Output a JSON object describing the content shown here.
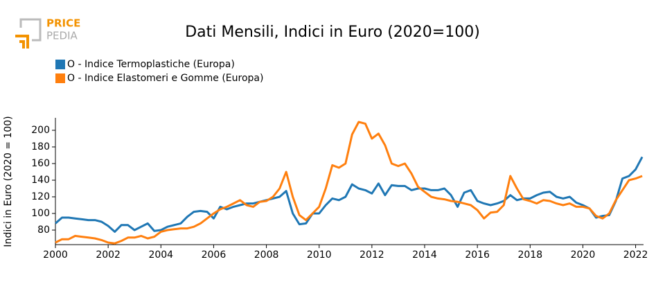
{
  "logo": {
    "line1": "PRICE",
    "line2": "PEDIA"
  },
  "chart_data": {
    "type": "line",
    "title": "Dati Mensili, Indici in Euro (2020=100)",
    "y_label": "Indici in Euro (2020 = 100)",
    "x": [
      2000,
      2000.25,
      2000.5,
      2000.75,
      2001,
      2001.25,
      2001.5,
      2001.75,
      2002,
      2002.25,
      2002.5,
      2002.75,
      2003,
      2003.25,
      2003.5,
      2003.75,
      2004,
      2004.25,
      2004.5,
      2004.75,
      2005,
      2005.25,
      2005.5,
      2005.75,
      2006,
      2006.25,
      2006.5,
      2006.75,
      2007,
      2007.25,
      2007.5,
      2007.75,
      2008,
      2008.25,
      2008.5,
      2008.75,
      2009,
      2009.25,
      2009.5,
      2009.75,
      2010,
      2010.25,
      2010.5,
      2010.75,
      2011,
      2011.25,
      2011.5,
      2011.75,
      2012,
      2012.25,
      2012.5,
      2012.75,
      2013,
      2013.25,
      2013.5,
      2013.75,
      2014,
      2014.25,
      2014.5,
      2014.75,
      2015,
      2015.25,
      2015.5,
      2015.75,
      2016,
      2016.25,
      2016.5,
      2016.75,
      2017,
      2017.25,
      2017.5,
      2017.75,
      2018,
      2018.25,
      2018.5,
      2018.75,
      2019,
      2019.25,
      2019.5,
      2019.75,
      2020,
      2020.25,
      2020.5,
      2020.75,
      2021,
      2021.25,
      2021.5,
      2021.75,
      2022,
      2022.25
    ],
    "series": [
      {
        "name": "O - Indice Termoplastiche (Europa)",
        "color": "#1f77b4",
        "values": [
          88,
          95,
          95,
          94,
          93,
          92,
          92,
          90,
          85,
          78,
          86,
          86,
          80,
          84,
          88,
          79,
          80,
          84,
          86,
          88,
          96,
          102,
          103,
          102,
          94,
          108,
          105,
          108,
          110,
          112,
          112,
          114,
          116,
          118,
          120,
          127,
          100,
          87,
          88,
          100,
          100,
          110,
          118,
          116,
          120,
          135,
          130,
          128,
          124,
          136,
          122,
          134,
          133,
          133,
          128,
          130,
          130,
          128,
          128,
          130,
          122,
          108,
          125,
          128,
          115,
          112,
          110,
          112,
          115,
          122,
          116,
          118,
          118,
          122,
          125,
          126,
          120,
          118,
          120,
          113,
          110,
          106,
          95,
          97,
          98,
          115,
          142,
          145,
          153,
          168
        ]
      },
      {
        "name": "O - Indice Elastomeri e Gomme (Europa)",
        "color": "#ff7f0e",
        "values": [
          65,
          69,
          69,
          73,
          72,
          71,
          70,
          68,
          65,
          64,
          67,
          71,
          71,
          73,
          70,
          72,
          78,
          80,
          81,
          82,
          82,
          84,
          88,
          94,
          100,
          105,
          108,
          112,
          116,
          110,
          108,
          114,
          115,
          120,
          130,
          150,
          120,
          98,
          92,
          100,
          108,
          130,
          158,
          155,
          160,
          195,
          210,
          208,
          190,
          196,
          182,
          160,
          157,
          160,
          148,
          132,
          126,
          120,
          118,
          117,
          115,
          114,
          112,
          110,
          104,
          94,
          101,
          102,
          110,
          145,
          130,
          117,
          115,
          112,
          116,
          115,
          112,
          110,
          112,
          108,
          108,
          106,
          97,
          94,
          100,
          116,
          128,
          140,
          142,
          145
        ]
      }
    ],
    "xlim": [
      2000,
      2022.3
    ],
    "ylim": [
      62.5,
      215
    ],
    "xticks": [
      2000,
      2002,
      2004,
      2006,
      2008,
      2010,
      2012,
      2014,
      2016,
      2018,
      2020,
      2022
    ],
    "yticks": [
      80,
      100,
      120,
      140,
      160,
      180,
      200
    ]
  }
}
